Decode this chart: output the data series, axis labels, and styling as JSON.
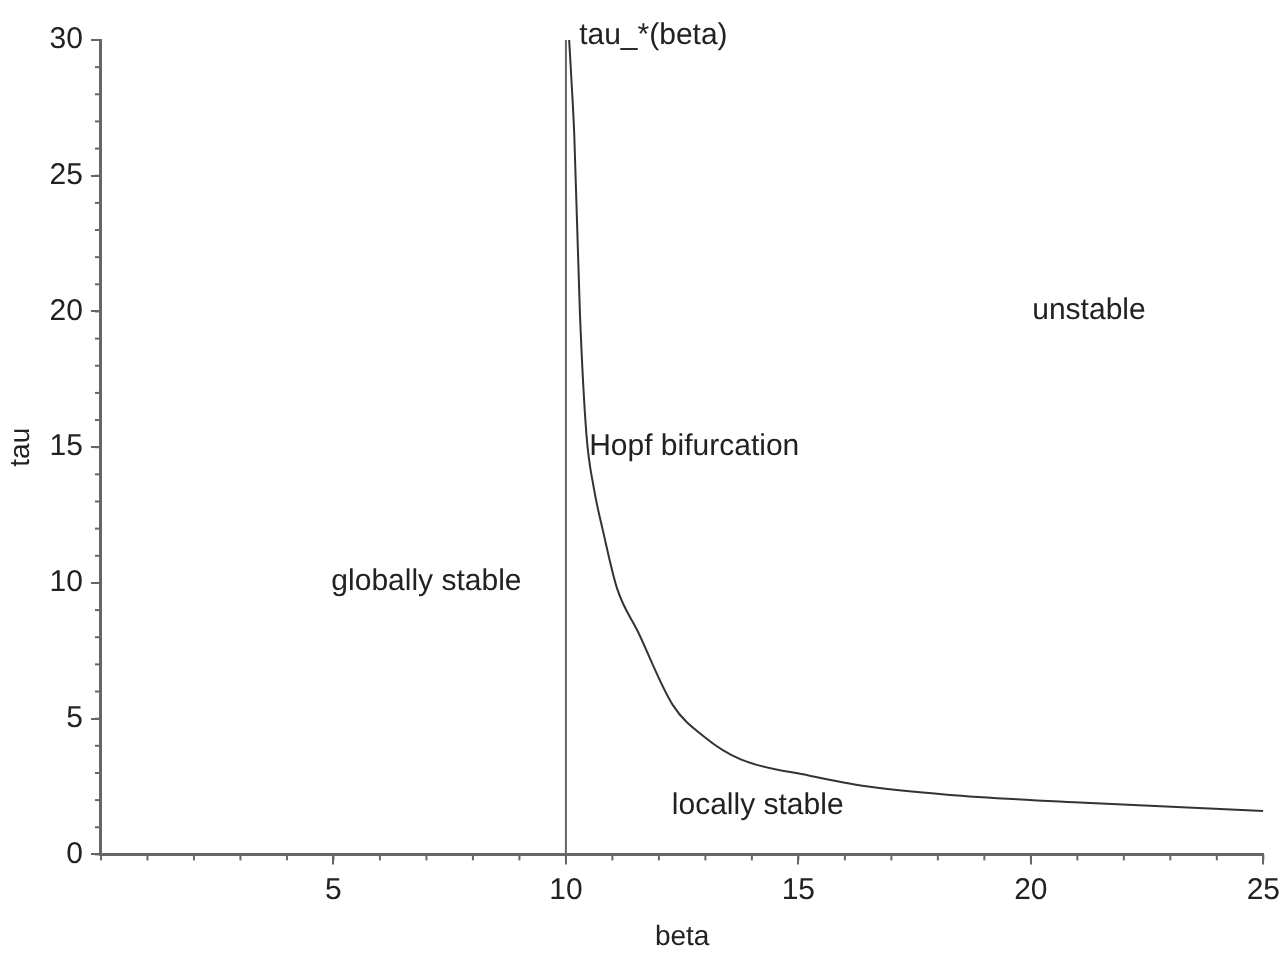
{
  "chart_data": {
    "type": "line",
    "xlabel": "beta",
    "ylabel": "tau",
    "series": [
      {
        "name": "tau_*(beta)",
        "color": "#333333",
        "x": [
          10.07,
          10.12,
          10.18,
          10.3,
          10.44,
          10.6,
          10.8,
          11.1,
          11.55,
          12.3,
          13,
          13.76,
          15.24,
          16.5,
          18.2,
          21.16,
          25
        ],
        "values": [
          30,
          28.5,
          26.5,
          20,
          15.5,
          13.5,
          11.9,
          9.8,
          8.2,
          5.5,
          4.3,
          3.5,
          2.9,
          2.5,
          2.2,
          1.9,
          1.6
        ]
      }
    ],
    "ref_lines": [
      {
        "axis": "x",
        "value": 10,
        "color": "#666666"
      }
    ],
    "annotations": [
      "globally stable",
      "Hopf bifurcation",
      "unstable",
      "locally stable"
    ],
    "xlim": [
      0,
      25
    ],
    "xticks": [
      5,
      10,
      15,
      20,
      25
    ],
    "ylim": [
      0,
      30
    ],
    "yticks": [
      0,
      5,
      10,
      15,
      20,
      25,
      30
    ],
    "grid": false,
    "legend": false,
    "marker": "none",
    "line_style": "solid"
  }
}
